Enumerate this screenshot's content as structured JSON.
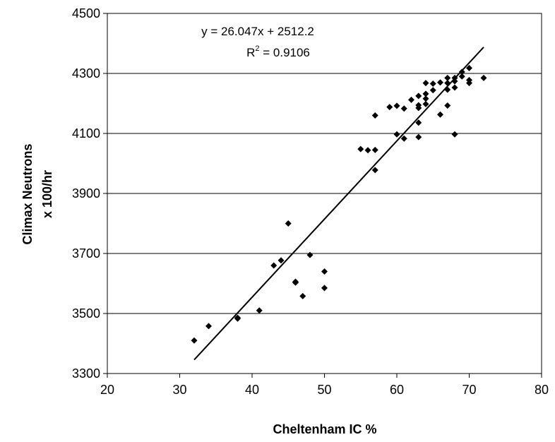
{
  "chart_data": {
    "type": "scatter",
    "xlabel": "Cheltenham IC %",
    "ylabel_lines": [
      "Climax Neutrons",
      "x 100/hr"
    ],
    "xlim": [
      20,
      80
    ],
    "ylim": [
      3300,
      4500
    ],
    "x_ticks": [
      20,
      30,
      40,
      50,
      60,
      70,
      80
    ],
    "y_ticks": [
      3300,
      3500,
      3700,
      3900,
      4100,
      4300,
      4500
    ],
    "grid": "horizontal",
    "trendline": {
      "type": "linear",
      "slope": 26.047,
      "intercept": 2512.2,
      "x_range": [
        32,
        72
      ],
      "equation": "y = 26.047x + 2512.2",
      "r2_label": "R",
      "r2_sup": "2",
      "r2_value": " = 0.9106"
    },
    "points": [
      {
        "x": 32,
        "y": 3410
      },
      {
        "x": 34,
        "y": 3458
      },
      {
        "x": 38,
        "y": 3483
      },
      {
        "x": 38,
        "y": 3486
      },
      {
        "x": 41,
        "y": 3510
      },
      {
        "x": 43,
        "y": 3660
      },
      {
        "x": 44,
        "y": 3677
      },
      {
        "x": 45,
        "y": 3800
      },
      {
        "x": 46,
        "y": 3603
      },
      {
        "x": 46,
        "y": 3606
      },
      {
        "x": 47,
        "y": 3558
      },
      {
        "x": 48,
        "y": 3695
      },
      {
        "x": 50,
        "y": 3640
      },
      {
        "x": 50,
        "y": 3585
      },
      {
        "x": 55,
        "y": 4048
      },
      {
        "x": 56,
        "y": 4044
      },
      {
        "x": 57,
        "y": 4045
      },
      {
        "x": 57,
        "y": 3978
      },
      {
        "x": 57,
        "y": 4160
      },
      {
        "x": 59,
        "y": 4188
      },
      {
        "x": 60,
        "y": 4192
      },
      {
        "x": 60,
        "y": 4097
      },
      {
        "x": 61,
        "y": 4183
      },
      {
        "x": 61,
        "y": 4083
      },
      {
        "x": 62,
        "y": 4212
      },
      {
        "x": 63,
        "y": 4225
      },
      {
        "x": 63,
        "y": 4194
      },
      {
        "x": 63,
        "y": 4185
      },
      {
        "x": 63,
        "y": 4136
      },
      {
        "x": 63,
        "y": 4088
      },
      {
        "x": 64,
        "y": 4268
      },
      {
        "x": 64,
        "y": 4232
      },
      {
        "x": 64,
        "y": 4216
      },
      {
        "x": 64,
        "y": 4198
      },
      {
        "x": 65,
        "y": 4266
      },
      {
        "x": 65,
        "y": 4244
      },
      {
        "x": 66,
        "y": 4270
      },
      {
        "x": 66,
        "y": 4163
      },
      {
        "x": 67,
        "y": 4285
      },
      {
        "x": 67,
        "y": 4268
      },
      {
        "x": 67,
        "y": 4246
      },
      {
        "x": 67,
        "y": 4193
      },
      {
        "x": 68,
        "y": 4285
      },
      {
        "x": 68,
        "y": 4274
      },
      {
        "x": 68,
        "y": 4253
      },
      {
        "x": 68,
        "y": 4097
      },
      {
        "x": 69,
        "y": 4305
      },
      {
        "x": 69,
        "y": 4290
      },
      {
        "x": 70,
        "y": 4318
      },
      {
        "x": 70,
        "y": 4278
      },
      {
        "x": 70,
        "y": 4268
      },
      {
        "x": 72,
        "y": 4285
      }
    ]
  }
}
